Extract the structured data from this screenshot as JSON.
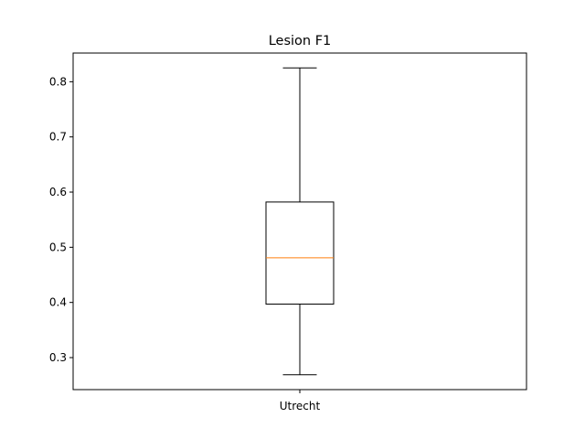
{
  "chart_data": {
    "type": "box",
    "title": "Lesion F1",
    "xlabel": "",
    "ylabel": "",
    "categories": [
      "Utrecht"
    ],
    "ylim": [
      0.242,
      0.852
    ],
    "yticks": [
      0.3,
      0.4,
      0.5,
      0.6,
      0.7,
      0.8
    ],
    "ytick_labels": [
      "0.3",
      "0.4",
      "0.5",
      "0.6",
      "0.7",
      "0.8"
    ],
    "boxes": [
      {
        "category": "Utrecht",
        "whisker_low": 0.269,
        "q1": 0.397,
        "median": 0.481,
        "q3": 0.582,
        "whisker_high": 0.825
      }
    ],
    "grid": false,
    "colors": {
      "box": "#000000",
      "median": "#ff7f0e",
      "axes": "#000000"
    }
  }
}
